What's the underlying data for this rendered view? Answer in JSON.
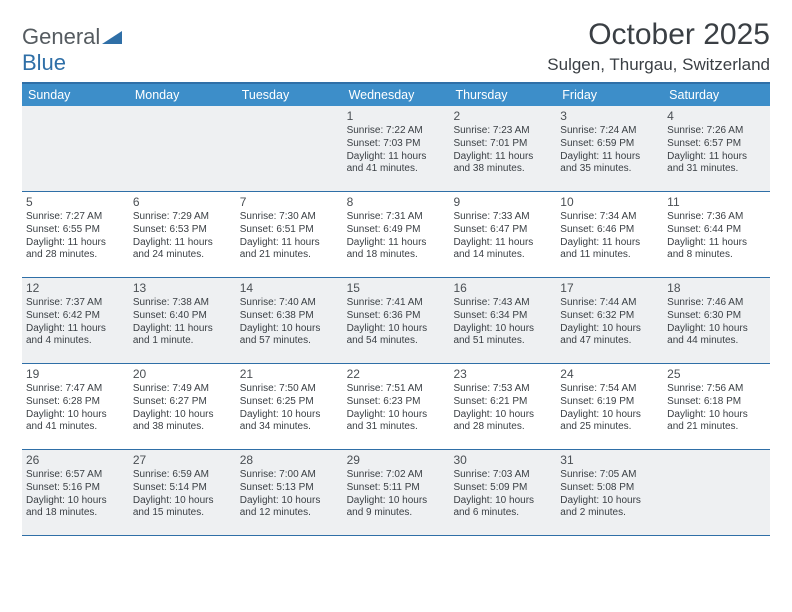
{
  "logo": {
    "word1": "General",
    "word2": "Blue"
  },
  "title": "October 2025",
  "location": "Sulgen, Thurgau, Switzerland",
  "colors": {
    "header_bg": "#3d8ec9",
    "border": "#2f6fa7",
    "shade": "#eef0f2",
    "text": "#3a3f44",
    "logo_gray": "#555b60",
    "logo_blue": "#2f6fa7"
  },
  "daysOfWeek": [
    "Sunday",
    "Monday",
    "Tuesday",
    "Wednesday",
    "Thursday",
    "Friday",
    "Saturday"
  ],
  "weeks": [
    [
      {
        "n": "",
        "sr": "",
        "ss": "",
        "dl": ""
      },
      {
        "n": "",
        "sr": "",
        "ss": "",
        "dl": ""
      },
      {
        "n": "",
        "sr": "",
        "ss": "",
        "dl": ""
      },
      {
        "n": "1",
        "sr": "7:22 AM",
        "ss": "7:03 PM",
        "dl": "11 hours and 41 minutes."
      },
      {
        "n": "2",
        "sr": "7:23 AM",
        "ss": "7:01 PM",
        "dl": "11 hours and 38 minutes."
      },
      {
        "n": "3",
        "sr": "7:24 AM",
        "ss": "6:59 PM",
        "dl": "11 hours and 35 minutes."
      },
      {
        "n": "4",
        "sr": "7:26 AM",
        "ss": "6:57 PM",
        "dl": "11 hours and 31 minutes."
      }
    ],
    [
      {
        "n": "5",
        "sr": "7:27 AM",
        "ss": "6:55 PM",
        "dl": "11 hours and 28 minutes."
      },
      {
        "n": "6",
        "sr": "7:29 AM",
        "ss": "6:53 PM",
        "dl": "11 hours and 24 minutes."
      },
      {
        "n": "7",
        "sr": "7:30 AM",
        "ss": "6:51 PM",
        "dl": "11 hours and 21 minutes."
      },
      {
        "n": "8",
        "sr": "7:31 AM",
        "ss": "6:49 PM",
        "dl": "11 hours and 18 minutes."
      },
      {
        "n": "9",
        "sr": "7:33 AM",
        "ss": "6:47 PM",
        "dl": "11 hours and 14 minutes."
      },
      {
        "n": "10",
        "sr": "7:34 AM",
        "ss": "6:46 PM",
        "dl": "11 hours and 11 minutes."
      },
      {
        "n": "11",
        "sr": "7:36 AM",
        "ss": "6:44 PM",
        "dl": "11 hours and 8 minutes."
      }
    ],
    [
      {
        "n": "12",
        "sr": "7:37 AM",
        "ss": "6:42 PM",
        "dl": "11 hours and 4 minutes."
      },
      {
        "n": "13",
        "sr": "7:38 AM",
        "ss": "6:40 PM",
        "dl": "11 hours and 1 minute."
      },
      {
        "n": "14",
        "sr": "7:40 AM",
        "ss": "6:38 PM",
        "dl": "10 hours and 57 minutes."
      },
      {
        "n": "15",
        "sr": "7:41 AM",
        "ss": "6:36 PM",
        "dl": "10 hours and 54 minutes."
      },
      {
        "n": "16",
        "sr": "7:43 AM",
        "ss": "6:34 PM",
        "dl": "10 hours and 51 minutes."
      },
      {
        "n": "17",
        "sr": "7:44 AM",
        "ss": "6:32 PM",
        "dl": "10 hours and 47 minutes."
      },
      {
        "n": "18",
        "sr": "7:46 AM",
        "ss": "6:30 PM",
        "dl": "10 hours and 44 minutes."
      }
    ],
    [
      {
        "n": "19",
        "sr": "7:47 AM",
        "ss": "6:28 PM",
        "dl": "10 hours and 41 minutes."
      },
      {
        "n": "20",
        "sr": "7:49 AM",
        "ss": "6:27 PM",
        "dl": "10 hours and 38 minutes."
      },
      {
        "n": "21",
        "sr": "7:50 AM",
        "ss": "6:25 PM",
        "dl": "10 hours and 34 minutes."
      },
      {
        "n": "22",
        "sr": "7:51 AM",
        "ss": "6:23 PM",
        "dl": "10 hours and 31 minutes."
      },
      {
        "n": "23",
        "sr": "7:53 AM",
        "ss": "6:21 PM",
        "dl": "10 hours and 28 minutes."
      },
      {
        "n": "24",
        "sr": "7:54 AM",
        "ss": "6:19 PM",
        "dl": "10 hours and 25 minutes."
      },
      {
        "n": "25",
        "sr": "7:56 AM",
        "ss": "6:18 PM",
        "dl": "10 hours and 21 minutes."
      }
    ],
    [
      {
        "n": "26",
        "sr": "6:57 AM",
        "ss": "5:16 PM",
        "dl": "10 hours and 18 minutes."
      },
      {
        "n": "27",
        "sr": "6:59 AM",
        "ss": "5:14 PM",
        "dl": "10 hours and 15 minutes."
      },
      {
        "n": "28",
        "sr": "7:00 AM",
        "ss": "5:13 PM",
        "dl": "10 hours and 12 minutes."
      },
      {
        "n": "29",
        "sr": "7:02 AM",
        "ss": "5:11 PM",
        "dl": "10 hours and 9 minutes."
      },
      {
        "n": "30",
        "sr": "7:03 AM",
        "ss": "5:09 PM",
        "dl": "10 hours and 6 minutes."
      },
      {
        "n": "31",
        "sr": "7:05 AM",
        "ss": "5:08 PM",
        "dl": "10 hours and 2 minutes."
      },
      {
        "n": "",
        "sr": "",
        "ss": "",
        "dl": ""
      }
    ]
  ],
  "labels": {
    "sunrise": "Sunrise: ",
    "sunset": "Sunset: ",
    "daylight": "Daylight: "
  }
}
